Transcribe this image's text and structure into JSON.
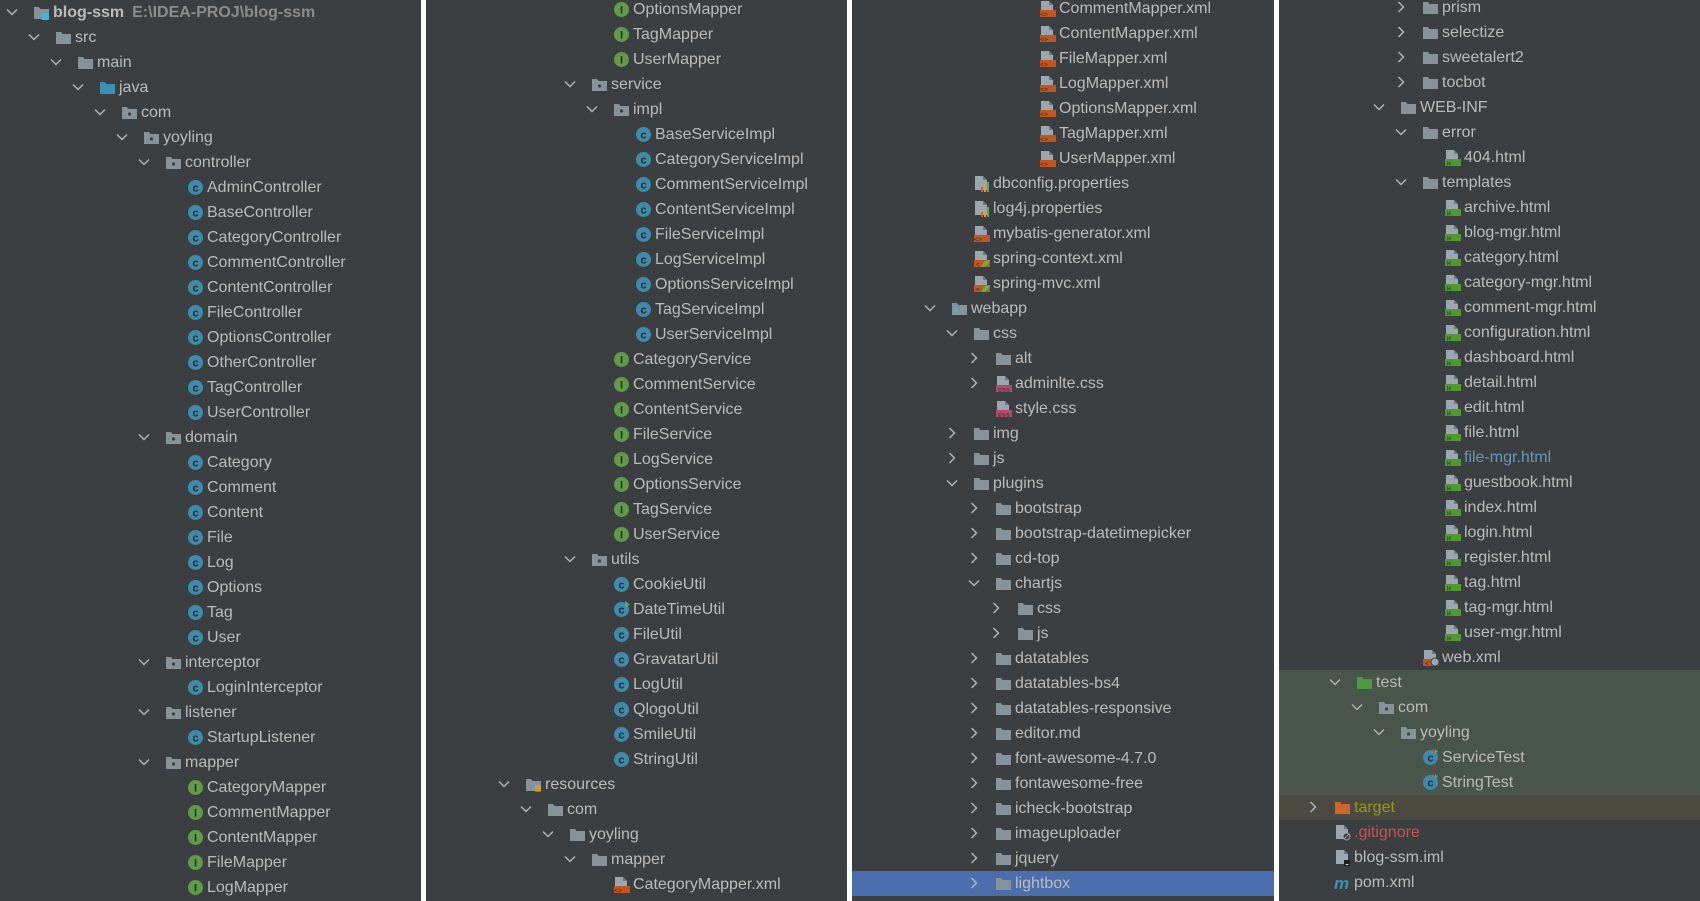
{
  "colors": {
    "background": "#3c3f41",
    "text": "#bbbbbb",
    "selection": "#4b6eaf",
    "test_bg": "#49544a",
    "excluded_bg": "#4d4a42",
    "modified": "#6897bb",
    "ignored": "#c75450",
    "excluded_text": "#9a9a0a"
  },
  "panels": [
    {
      "rows": [
        {
          "label": "blog-ssm",
          "path": "E:\\IDEA-PROJ\\blog-ssm",
          "level": 0,
          "chevron": "open",
          "icon": "project-folder",
          "bold": true
        },
        {
          "label": "src",
          "level": 1,
          "chevron": "open",
          "icon": "folder"
        },
        {
          "label": "main",
          "level": 2,
          "chevron": "open",
          "icon": "folder"
        },
        {
          "label": "java",
          "level": 3,
          "chevron": "open",
          "icon": "source-folder"
        },
        {
          "label": "com",
          "level": 4,
          "chevron": "open",
          "icon": "package"
        },
        {
          "label": "yoyling",
          "level": 5,
          "chevron": "open",
          "icon": "package"
        },
        {
          "label": "controller",
          "level": 6,
          "chevron": "open",
          "icon": "package"
        },
        {
          "label": "AdminController",
          "level": 7,
          "icon": "class"
        },
        {
          "label": "BaseController",
          "level": 7,
          "icon": "class"
        },
        {
          "label": "CategoryController",
          "level": 7,
          "icon": "class"
        },
        {
          "label": "CommentController",
          "level": 7,
          "icon": "class"
        },
        {
          "label": "ContentController",
          "level": 7,
          "icon": "class"
        },
        {
          "label": "FileController",
          "level": 7,
          "icon": "class"
        },
        {
          "label": "OptionsController",
          "level": 7,
          "icon": "class"
        },
        {
          "label": "OtherController",
          "level": 7,
          "icon": "class"
        },
        {
          "label": "TagController",
          "level": 7,
          "icon": "class"
        },
        {
          "label": "UserController",
          "level": 7,
          "icon": "class"
        },
        {
          "label": "domain",
          "level": 6,
          "chevron": "open",
          "icon": "package"
        },
        {
          "label": "Category",
          "level": 7,
          "icon": "class"
        },
        {
          "label": "Comment",
          "level": 7,
          "icon": "class"
        },
        {
          "label": "Content",
          "level": 7,
          "icon": "class"
        },
        {
          "label": "File",
          "level": 7,
          "icon": "class"
        },
        {
          "label": "Log",
          "level": 7,
          "icon": "class"
        },
        {
          "label": "Options",
          "level": 7,
          "icon": "class"
        },
        {
          "label": "Tag",
          "level": 7,
          "icon": "class"
        },
        {
          "label": "User",
          "level": 7,
          "icon": "class"
        },
        {
          "label": "interceptor",
          "level": 6,
          "chevron": "open",
          "icon": "package"
        },
        {
          "label": "LoginInterceptor",
          "level": 7,
          "icon": "class"
        },
        {
          "label": "listener",
          "level": 6,
          "chevron": "open",
          "icon": "package"
        },
        {
          "label": "StartupListener",
          "level": 7,
          "icon": "class"
        },
        {
          "label": "mapper",
          "level": 6,
          "chevron": "open",
          "icon": "package"
        },
        {
          "label": "CategoryMapper",
          "level": 7,
          "icon": "interface"
        },
        {
          "label": "CommentMapper",
          "level": 7,
          "icon": "interface"
        },
        {
          "label": "ContentMapper",
          "level": 7,
          "icon": "interface"
        },
        {
          "label": "FileMapper",
          "level": 7,
          "icon": "interface"
        },
        {
          "label": "LogMapper",
          "level": 7,
          "icon": "interface"
        }
      ]
    },
    {
      "rows": [
        {
          "label": "OptionsMapper",
          "level": 7,
          "icon": "interface"
        },
        {
          "label": "TagMapper",
          "level": 7,
          "icon": "interface"
        },
        {
          "label": "UserMapper",
          "level": 7,
          "icon": "interface"
        },
        {
          "label": "service",
          "level": 6,
          "chevron": "open",
          "icon": "package"
        },
        {
          "label": "impl",
          "level": 7,
          "chevron": "open",
          "icon": "package"
        },
        {
          "label": "BaseServiceImpl",
          "level": 8,
          "icon": "class"
        },
        {
          "label": "CategoryServiceImpl",
          "level": 8,
          "icon": "class"
        },
        {
          "label": "CommentServiceImpl",
          "level": 8,
          "icon": "class"
        },
        {
          "label": "ContentServiceImpl",
          "level": 8,
          "icon": "class"
        },
        {
          "label": "FileServiceImpl",
          "level": 8,
          "icon": "class"
        },
        {
          "label": "LogServiceImpl",
          "level": 8,
          "icon": "class"
        },
        {
          "label": "OptionsServiceImpl",
          "level": 8,
          "icon": "class"
        },
        {
          "label": "TagServiceImpl",
          "level": 8,
          "icon": "class"
        },
        {
          "label": "UserServiceImpl",
          "level": 8,
          "icon": "class"
        },
        {
          "label": "CategoryService",
          "level": 7,
          "icon": "interface"
        },
        {
          "label": "CommentService",
          "level": 7,
          "icon": "interface"
        },
        {
          "label": "ContentService",
          "level": 7,
          "icon": "interface"
        },
        {
          "label": "FileService",
          "level": 7,
          "icon": "interface"
        },
        {
          "label": "LogService",
          "level": 7,
          "icon": "interface"
        },
        {
          "label": "OptionsService",
          "level": 7,
          "icon": "interface"
        },
        {
          "label": "TagService",
          "level": 7,
          "icon": "interface"
        },
        {
          "label": "UserService",
          "level": 7,
          "icon": "interface"
        },
        {
          "label": "utils",
          "level": 6,
          "chevron": "open",
          "icon": "package"
        },
        {
          "label": "CookieUtil",
          "level": 7,
          "icon": "class"
        },
        {
          "label": "DateTimeUtil",
          "level": 7,
          "icon": "class-runnable"
        },
        {
          "label": "FileUtil",
          "level": 7,
          "icon": "class"
        },
        {
          "label": "GravatarUtil",
          "level": 7,
          "icon": "class"
        },
        {
          "label": "LogUtil",
          "level": 7,
          "icon": "class"
        },
        {
          "label": "QlogoUtil",
          "level": 7,
          "icon": "class"
        },
        {
          "label": "SmileUtil",
          "level": 7,
          "icon": "class"
        },
        {
          "label": "StringUtil",
          "level": 7,
          "icon": "class"
        },
        {
          "label": "resources",
          "level": 3,
          "chevron": "open",
          "icon": "resources-folder"
        },
        {
          "label": "com",
          "level": 4,
          "chevron": "open",
          "icon": "folder"
        },
        {
          "label": "yoyling",
          "level": 5,
          "chevron": "open",
          "icon": "folder"
        },
        {
          "label": "mapper",
          "level": 6,
          "chevron": "open",
          "icon": "folder"
        },
        {
          "label": "CategoryMapper.xml",
          "level": 7,
          "icon": "xml-file"
        }
      ]
    },
    {
      "rows": [
        {
          "label": "CommentMapper.xml",
          "level": 7,
          "icon": "xml-file"
        },
        {
          "label": "ContentMapper.xml",
          "level": 7,
          "icon": "xml-file"
        },
        {
          "label": "FileMapper.xml",
          "level": 7,
          "icon": "xml-file"
        },
        {
          "label": "LogMapper.xml",
          "level": 7,
          "icon": "xml-file"
        },
        {
          "label": "OptionsMapper.xml",
          "level": 7,
          "icon": "xml-file"
        },
        {
          "label": "TagMapper.xml",
          "level": 7,
          "icon": "xml-file"
        },
        {
          "label": "UserMapper.xml",
          "level": 7,
          "icon": "xml-file"
        },
        {
          "label": "dbconfig.properties",
          "level": 4,
          "icon": "properties-file"
        },
        {
          "label": "log4j.properties",
          "level": 4,
          "icon": "properties-file"
        },
        {
          "label": "mybatis-generator.xml",
          "level": 4,
          "icon": "xml-file"
        },
        {
          "label": "spring-context.xml",
          "level": 4,
          "icon": "spring-xml-file"
        },
        {
          "label": "spring-mvc.xml",
          "level": 4,
          "icon": "spring-xml-file"
        },
        {
          "label": "webapp",
          "level": 3,
          "chevron": "open",
          "icon": "web-folder"
        },
        {
          "label": "css",
          "level": 4,
          "chevron": "open",
          "icon": "folder"
        },
        {
          "label": "alt",
          "level": 5,
          "chevron": "closed",
          "icon": "folder"
        },
        {
          "label": "adminlte.css",
          "level": 5,
          "chevron": "closed",
          "icon": "css-file"
        },
        {
          "label": "style.css",
          "level": 5,
          "icon": "css-file"
        },
        {
          "label": "img",
          "level": 4,
          "chevron": "closed",
          "icon": "folder"
        },
        {
          "label": "js",
          "level": 4,
          "chevron": "closed",
          "icon": "folder"
        },
        {
          "label": "plugins",
          "level": 4,
          "chevron": "open",
          "icon": "folder"
        },
        {
          "label": "bootstrap",
          "level": 5,
          "chevron": "closed",
          "icon": "folder"
        },
        {
          "label": "bootstrap-datetimepicker",
          "level": 5,
          "chevron": "closed",
          "icon": "folder"
        },
        {
          "label": "cd-top",
          "level": 5,
          "chevron": "closed",
          "icon": "folder"
        },
        {
          "label": "chartjs",
          "level": 5,
          "chevron": "open",
          "icon": "folder"
        },
        {
          "label": "css",
          "level": 6,
          "chevron": "closed",
          "icon": "folder"
        },
        {
          "label": "js",
          "level": 6,
          "chevron": "closed",
          "icon": "folder"
        },
        {
          "label": "datatables",
          "level": 5,
          "chevron": "closed",
          "icon": "folder"
        },
        {
          "label": "datatables-bs4",
          "level": 5,
          "chevron": "closed",
          "icon": "folder"
        },
        {
          "label": "datatables-responsive",
          "level": 5,
          "chevron": "closed",
          "icon": "folder"
        },
        {
          "label": "editor.md",
          "level": 5,
          "chevron": "closed",
          "icon": "folder"
        },
        {
          "label": "font-awesome-4.7.0",
          "level": 5,
          "chevron": "closed",
          "icon": "folder"
        },
        {
          "label": "fontawesome-free",
          "level": 5,
          "chevron": "closed",
          "icon": "folder"
        },
        {
          "label": "icheck-bootstrap",
          "level": 5,
          "chevron": "closed",
          "icon": "folder"
        },
        {
          "label": "imageuploader",
          "level": 5,
          "chevron": "closed",
          "icon": "folder"
        },
        {
          "label": "jquery",
          "level": 5,
          "chevron": "closed",
          "icon": "folder"
        },
        {
          "label": "lightbox",
          "level": 5,
          "chevron": "closed",
          "icon": "folder",
          "state": "selected"
        }
      ]
    },
    {
      "rows": [
        {
          "label": "prism",
          "level": 5,
          "chevron": "closed",
          "icon": "folder"
        },
        {
          "label": "selectize",
          "level": 5,
          "chevron": "closed",
          "icon": "folder"
        },
        {
          "label": "sweetalert2",
          "level": 5,
          "chevron": "closed",
          "icon": "folder"
        },
        {
          "label": "tocbot",
          "level": 5,
          "chevron": "closed",
          "icon": "folder"
        },
        {
          "label": "WEB-INF",
          "level": 4,
          "chevron": "open",
          "icon": "folder"
        },
        {
          "label": "error",
          "level": 5,
          "chevron": "open",
          "icon": "folder"
        },
        {
          "label": "404.html",
          "level": 6,
          "icon": "html-file"
        },
        {
          "label": "templates",
          "level": 5,
          "chevron": "open",
          "icon": "folder"
        },
        {
          "label": "archive.html",
          "level": 6,
          "icon": "html-file"
        },
        {
          "label": "blog-mgr.html",
          "level": 6,
          "icon": "html-file"
        },
        {
          "label": "category.html",
          "level": 6,
          "icon": "html-file"
        },
        {
          "label": "category-mgr.html",
          "level": 6,
          "icon": "html-file"
        },
        {
          "label": "comment-mgr.html",
          "level": 6,
          "icon": "html-file"
        },
        {
          "label": "configuration.html",
          "level": 6,
          "icon": "html-file"
        },
        {
          "label": "dashboard.html",
          "level": 6,
          "icon": "html-file"
        },
        {
          "label": "detail.html",
          "level": 6,
          "icon": "html-file"
        },
        {
          "label": "edit.html",
          "level": 6,
          "icon": "html-file"
        },
        {
          "label": "file.html",
          "level": 6,
          "icon": "html-file"
        },
        {
          "label": "file-mgr.html",
          "level": 6,
          "icon": "html-file",
          "text": "modified"
        },
        {
          "label": "guestbook.html",
          "level": 6,
          "icon": "html-file"
        },
        {
          "label": "index.html",
          "level": 6,
          "icon": "html-file"
        },
        {
          "label": "login.html",
          "level": 6,
          "icon": "html-file"
        },
        {
          "label": "register.html",
          "level": 6,
          "icon": "html-file"
        },
        {
          "label": "tag.html",
          "level": 6,
          "icon": "html-file"
        },
        {
          "label": "tag-mgr.html",
          "level": 6,
          "icon": "html-file"
        },
        {
          "label": "user-mgr.html",
          "level": 6,
          "icon": "html-file"
        },
        {
          "label": "web.xml",
          "level": 5,
          "icon": "web-xml-file"
        },
        {
          "label": "test",
          "level": 2,
          "chevron": "open",
          "icon": "test-folder",
          "state": "test"
        },
        {
          "label": "com",
          "level": 3,
          "chevron": "open",
          "icon": "package",
          "state": "test"
        },
        {
          "label": "yoyling",
          "level": 4,
          "chevron": "open",
          "icon": "package",
          "state": "test"
        },
        {
          "label": "ServiceTest",
          "level": 5,
          "icon": "test-class",
          "state": "test"
        },
        {
          "label": "StringTest",
          "level": 5,
          "icon": "test-class",
          "state": "test"
        },
        {
          "label": "target",
          "level": 1,
          "chevron": "closed",
          "icon": "excluded-folder",
          "state": "excluded",
          "text": "excluded"
        },
        {
          "label": ".gitignore",
          "level": 1,
          "icon": "ignore-file",
          "text": "ignored"
        },
        {
          "label": "blog-ssm.iml",
          "level": 1,
          "icon": "iml-file"
        },
        {
          "label": "pom.xml",
          "level": 1,
          "icon": "maven-file"
        }
      ]
    }
  ]
}
